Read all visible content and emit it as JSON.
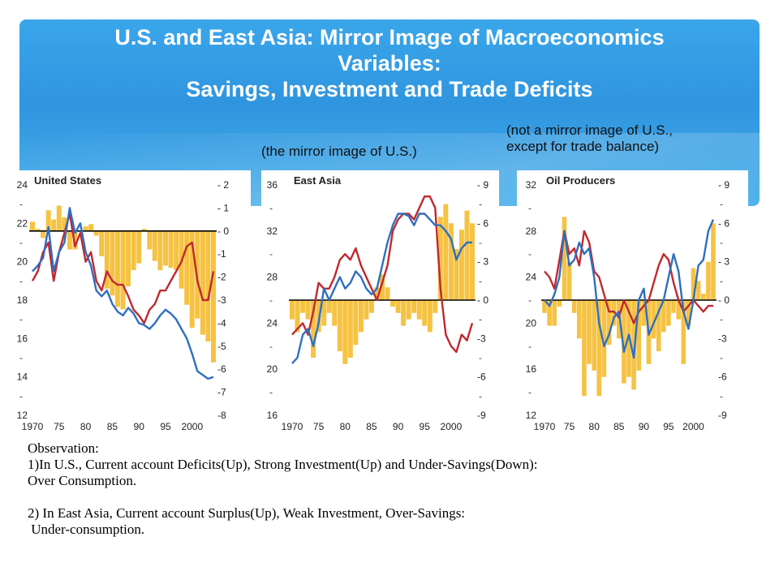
{
  "slide": {
    "title_line1": "U.S. and East Asia: Mirror Image of Macroeconomics",
    "title_line2": "Variables:",
    "title_line3": "Savings, Investment and Trade Deficits",
    "note_mirror": "(the mirror image of  U.S.)",
    "note_not_mirror_line1": "(not a mirror image of U.S.,",
    "note_not_mirror_line2": "except for trade balance)",
    "observation": [
      "Observation:",
      "1)In U.S., Current account Deficits(Up), Strong Investment(Up) and Under-Savings(Down):",
      "Over Consumption.",
      "",
      "2) In East Asia, Current account Surplus(Up), Weak Investment, Over-Savings:",
      " Under-consumption."
    ]
  },
  "colors": {
    "bars": "#f5c242",
    "investment_line": "#c0282e",
    "savings_line": "#2f6fbf",
    "zero_line": "#000000"
  },
  "chart_data": [
    {
      "type": "bar+line",
      "title": "United States",
      "x_ticks": [
        "1970",
        "75",
        "80",
        "85",
        "90",
        "95",
        "2000"
      ],
      "x": [
        1970,
        1971,
        1972,
        1973,
        1974,
        1975,
        1976,
        1977,
        1978,
        1979,
        1980,
        1981,
        1982,
        1983,
        1984,
        1985,
        1986,
        1987,
        1988,
        1989,
        1990,
        1991,
        1992,
        1993,
        1994,
        1995,
        1996,
        1997,
        1998,
        1999,
        2000,
        2001,
        2002,
        2003,
        2004
      ],
      "left_ylim": [
        12,
        24
      ],
      "left_ticks": [
        "24",
        "22",
        "20",
        "18",
        "16",
        "14",
        "12"
      ],
      "right_ylim": [
        -8,
        2
      ],
      "right_ticks": [
        "2",
        "1",
        "0",
        "-1",
        "-2",
        "-3",
        "-4",
        "-5",
        "-6",
        "-7",
        "-8"
      ],
      "series": [
        {
          "kind": "bar",
          "axis": "right",
          "values": [
            0.4,
            0.1,
            -0.3,
            0.9,
            0.5,
            1.1,
            0.6,
            -0.8,
            -0.8,
            0,
            0.2,
            0.3,
            -0.2,
            -1.1,
            -2.5,
            -2.8,
            -3.3,
            -3.4,
            -2.4,
            -1.7,
            -1.4,
            0.1,
            -0.8,
            -1.3,
            -1.7,
            -1.5,
            -1.6,
            -1.7,
            -2.5,
            -3.2,
            -4.2,
            -3.8,
            -4.5,
            -4.8,
            -5.7
          ]
        },
        {
          "kind": "line",
          "axis": "left",
          "values": [
            19,
            19.5,
            20.5,
            21,
            19,
            20.5,
            21.5,
            22.5,
            20.8,
            21.5,
            20,
            20.5,
            19,
            18.5,
            19.5,
            19,
            18.8,
            18.8,
            18.2,
            17.5,
            17.2,
            16.8,
            17.5,
            17.8,
            18.5,
            18.5,
            19,
            19.5,
            20,
            20.8,
            21,
            19,
            18,
            18,
            19.5
          ]
        },
        {
          "kind": "line",
          "axis": "left",
          "values": [
            19.5,
            19.8,
            20.2,
            21.8,
            19.5,
            20.5,
            21,
            22.8,
            21.5,
            22,
            20.5,
            19.8,
            18.5,
            18.2,
            18.5,
            17.8,
            17.4,
            17.2,
            17.6,
            17.3,
            16.8,
            16.7,
            16.5,
            16.8,
            17.2,
            17.5,
            17.3,
            17,
            16.5,
            16,
            15.2,
            14.3,
            14.1,
            13.9,
            14
          ]
        }
      ]
    },
    {
      "type": "bar+line",
      "title": "East Asia",
      "x_ticks": [
        "1970",
        "75",
        "80",
        "85",
        "90",
        "95",
        "2000"
      ],
      "x": [
        1970,
        1971,
        1972,
        1973,
        1974,
        1975,
        1976,
        1977,
        1978,
        1979,
        1980,
        1981,
        1982,
        1983,
        1984,
        1985,
        1986,
        1987,
        1988,
        1989,
        1990,
        1991,
        1992,
        1993,
        1994,
        1995,
        1996,
        1997,
        1998,
        1999,
        2000,
        2001,
        2002,
        2003,
        2004
      ],
      "left_ylim": [
        16,
        36
      ],
      "left_ticks": [
        "36",
        "32",
        "28",
        "24",
        "20",
        "16"
      ],
      "right_ylim": [
        -9,
        9
      ],
      "right_ticks": [
        "9",
        "6",
        "3",
        "0",
        "-3",
        "-6",
        "-9"
      ],
      "series": [
        {
          "kind": "bar",
          "axis": "right",
          "values": [
            -1.5,
            -2.5,
            -1,
            -1.5,
            -4.5,
            -2.5,
            -2,
            -1,
            -2,
            -4,
            -5,
            -4.5,
            -3.5,
            -2.5,
            -1.5,
            -1,
            1,
            2,
            1,
            -0.5,
            -1,
            -2,
            -1.5,
            -1,
            -1.5,
            -2,
            -2.5,
            -1,
            6.5,
            7.5,
            6,
            4,
            5.5,
            7,
            6
          ]
        },
        {
          "kind": "line",
          "axis": "left",
          "values": [
            23,
            23.5,
            24,
            23,
            25,
            27.5,
            27,
            27,
            28,
            29.5,
            30,
            29.5,
            30.5,
            29,
            28,
            27,
            26,
            27.5,
            29,
            32,
            33,
            33.5,
            33.5,
            33,
            34,
            35,
            35,
            34,
            27,
            23,
            22,
            21.5,
            23,
            22.5,
            24
          ]
        },
        {
          "kind": "line",
          "axis": "left",
          "values": [
            20.5,
            21,
            23,
            23.5,
            22,
            24,
            27,
            26,
            27,
            28,
            27,
            27.5,
            28.5,
            28,
            27,
            26.5,
            27,
            29,
            31,
            32.5,
            33.5,
            33.5,
            33.3,
            32.5,
            33.5,
            33.5,
            33,
            32.5,
            32.5,
            32,
            31.3,
            29.5,
            30.5,
            31,
            31
          ]
        }
      ]
    },
    {
      "type": "bar+line",
      "title": "Oil Producers",
      "x_ticks": [
        "1970",
        "75",
        "80",
        "85",
        "90",
        "95",
        "2000"
      ],
      "x": [
        1970,
        1971,
        1972,
        1973,
        1974,
        1975,
        1976,
        1977,
        1978,
        1979,
        1980,
        1981,
        1982,
        1983,
        1984,
        1985,
        1986,
        1987,
        1988,
        1989,
        1990,
        1991,
        1992,
        1993,
        1994,
        1995,
        1996,
        1997,
        1998,
        1999,
        2000,
        2001,
        2002,
        2003,
        2004
      ],
      "left_ylim": [
        12,
        32
      ],
      "left_ticks": [
        "32",
        "28",
        "24",
        "20",
        "16",
        "12"
      ],
      "right_ylim": [
        -9,
        9
      ],
      "right_ticks": [
        "9",
        "6",
        "3",
        "0",
        "-3",
        "-6",
        "-9"
      ],
      "series": [
        {
          "kind": "bar",
          "axis": "right",
          "values": [
            -1,
            -2,
            -2,
            -0.5,
            6.5,
            3,
            -1,
            -3,
            -7.5,
            -5,
            -5.5,
            -7.5,
            -6,
            -3.5,
            -2,
            -3,
            -6.5,
            -6,
            -7,
            -5.5,
            -2,
            -5,
            -3,
            -4,
            -2.5,
            -2,
            -1,
            -1.5,
            -5,
            -2,
            2.5,
            1.5,
            0.5,
            3,
            6
          ]
        },
        {
          "kind": "line",
          "axis": "left",
          "values": [
            24.5,
            24,
            23,
            25.5,
            28,
            26,
            26.5,
            25,
            28,
            27,
            24.5,
            24,
            22.5,
            21,
            21,
            20.5,
            22,
            21,
            20,
            21,
            21.5,
            22,
            23.5,
            25,
            26,
            25.5,
            23.5,
            22,
            21,
            21.5,
            22,
            21.5,
            21,
            21.5,
            21.5
          ]
        },
        {
          "kind": "line",
          "axis": "left",
          "values": [
            22,
            21.5,
            22.5,
            24,
            28,
            25,
            25.5,
            27,
            26,
            26.5,
            24,
            20,
            18,
            19,
            20.5,
            21,
            17.5,
            19,
            17,
            22,
            23,
            19,
            20,
            21,
            22,
            24,
            26,
            24.5,
            21,
            19.5,
            22,
            25,
            25.5,
            28,
            29
          ]
        }
      ]
    }
  ]
}
